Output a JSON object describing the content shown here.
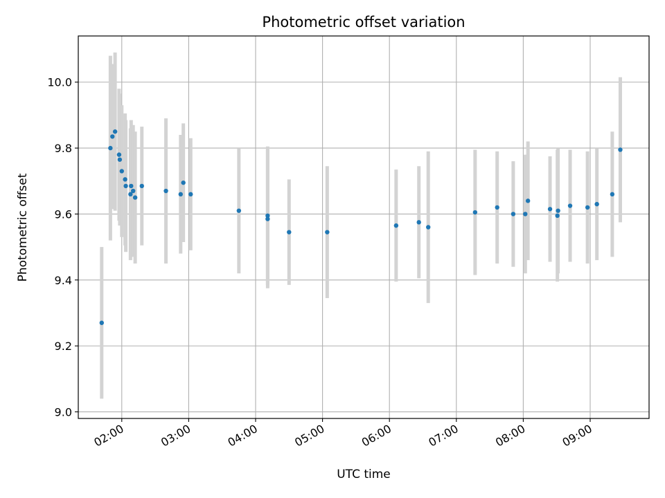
{
  "chart_data": {
    "type": "scatter",
    "title": "Photometric offset variation",
    "xlabel": "UTC time",
    "ylabel": "Photometric offset",
    "x_unit": "hours (UTC)",
    "xlim": [
      1.35,
      9.88
    ],
    "ylim": [
      8.98,
      10.14
    ],
    "grid": true,
    "x_ticks": [
      {
        "value": 2,
        "label": "02:00"
      },
      {
        "value": 3,
        "label": "03:00"
      },
      {
        "value": 4,
        "label": "04:00"
      },
      {
        "value": 5,
        "label": "05:00"
      },
      {
        "value": 6,
        "label": "06:00"
      },
      {
        "value": 7,
        "label": "07:00"
      },
      {
        "value": 8,
        "label": "08:00"
      },
      {
        "value": 9,
        "label": "09:00"
      }
    ],
    "y_ticks": [
      {
        "value": 9.0,
        "label": "9.0"
      },
      {
        "value": 9.2,
        "label": "9.2"
      },
      {
        "value": 9.4,
        "label": "9.4"
      },
      {
        "value": 9.6,
        "label": "9.6"
      },
      {
        "value": 9.8,
        "label": "9.8"
      },
      {
        "value": 10.0,
        "label": "10.0"
      }
    ],
    "point_color": "#1f77b4",
    "errorbar_color": "#d3d3d3",
    "points": [
      {
        "x": 1.7,
        "y": 9.27,
        "err": 0.23
      },
      {
        "x": 1.83,
        "y": 9.8,
        "err": 0.28
      },
      {
        "x": 1.86,
        "y": 9.835,
        "err": 0.22
      },
      {
        "x": 1.9,
        "y": 9.85,
        "err": 0.24
      },
      {
        "x": 1.96,
        "y": 9.78,
        "err": 0.2
      },
      {
        "x": 1.97,
        "y": 9.765,
        "err": 0.2
      },
      {
        "x": 2.0,
        "y": 9.73,
        "err": 0.2
      },
      {
        "x": 2.05,
        "y": 9.705,
        "err": 0.2
      },
      {
        "x": 2.06,
        "y": 9.685,
        "err": 0.2
      },
      {
        "x": 2.13,
        "y": 9.66,
        "err": 0.2
      },
      {
        "x": 2.14,
        "y": 9.685,
        "err": 0.2
      },
      {
        "x": 2.17,
        "y": 9.67,
        "err": 0.2
      },
      {
        "x": 2.2,
        "y": 9.65,
        "err": 0.2
      },
      {
        "x": 2.3,
        "y": 9.685,
        "err": 0.18
      },
      {
        "x": 2.66,
        "y": 9.67,
        "err": 0.22
      },
      {
        "x": 2.88,
        "y": 9.66,
        "err": 0.18
      },
      {
        "x": 2.92,
        "y": 9.695,
        "err": 0.18
      },
      {
        "x": 3.03,
        "y": 9.66,
        "err": 0.17
      },
      {
        "x": 3.75,
        "y": 9.61,
        "err": 0.19
      },
      {
        "x": 4.18,
        "y": 9.595,
        "err": 0.21
      },
      {
        "x": 4.18,
        "y": 9.585,
        "err": 0.21
      },
      {
        "x": 4.5,
        "y": 9.545,
        "err": 0.16
      },
      {
        "x": 5.07,
        "y": 9.545,
        "err": 0.2
      },
      {
        "x": 6.1,
        "y": 9.565,
        "err": 0.17
      },
      {
        "x": 6.44,
        "y": 9.575,
        "err": 0.17
      },
      {
        "x": 6.58,
        "y": 9.56,
        "err": 0.23
      },
      {
        "x": 7.28,
        "y": 9.605,
        "err": 0.19
      },
      {
        "x": 7.61,
        "y": 9.62,
        "err": 0.17
      },
      {
        "x": 7.85,
        "y": 9.6,
        "err": 0.16
      },
      {
        "x": 8.03,
        "y": 9.6,
        "err": 0.18
      },
      {
        "x": 8.07,
        "y": 9.64,
        "err": 0.18
      },
      {
        "x": 8.4,
        "y": 9.615,
        "err": 0.16
      },
      {
        "x": 8.51,
        "y": 9.595,
        "err": 0.2
      },
      {
        "x": 8.52,
        "y": 9.61,
        "err": 0.19
      },
      {
        "x": 8.7,
        "y": 9.625,
        "err": 0.17
      },
      {
        "x": 8.96,
        "y": 9.62,
        "err": 0.17
      },
      {
        "x": 9.1,
        "y": 9.63,
        "err": 0.17
      },
      {
        "x": 9.33,
        "y": 9.66,
        "err": 0.19
      },
      {
        "x": 9.45,
        "y": 9.795,
        "err": 0.22
      }
    ]
  }
}
